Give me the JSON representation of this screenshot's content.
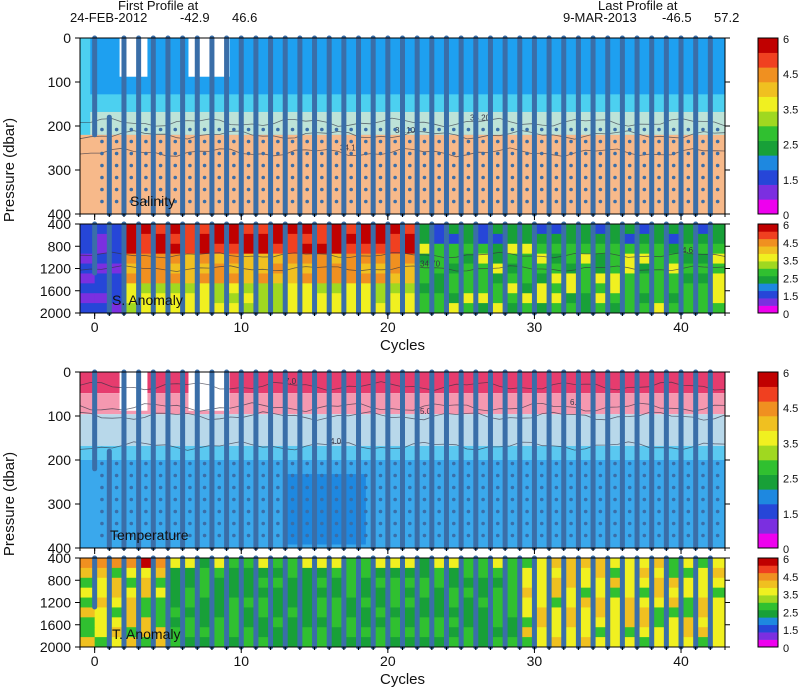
{
  "header": {
    "first_label": "First Profile at",
    "first_date": "24-FEB-2012",
    "first_lat": "-42.9",
    "first_lon": "46.6",
    "last_label": "Last Profile at",
    "last_date": "9-MAR-2013",
    "last_lat": "-46.5",
    "last_lon": "57.2"
  },
  "colors": {
    "colorbar": [
      "#ee00ee",
      "#7b2fe0",
      "#2646d8",
      "#1e88e0",
      "#18a038",
      "#30c030",
      "#a0d820",
      "#f0f020",
      "#f0c020",
      "#f09020",
      "#f04020",
      "#c00000"
    ],
    "profile": "#3a6ea8",
    "sal_bg": [
      "#1ea0f0",
      "#4cd0f0",
      "#bde3d8",
      "#f7b98a"
    ],
    "temp_bg": [
      "#e63c6e",
      "#f598b0",
      "#b8d8ea",
      "#5ac8f0",
      "#3aa8ec",
      "#1e88e0"
    ]
  },
  "chart_data": [
    {
      "type": "heatmap",
      "title": "Salinity",
      "ylabel": "Pressure (dbar)",
      "xlabel": "",
      "x_ticks": [
        "0",
        "10",
        "20",
        "30",
        "40"
      ],
      "y_ticks": [
        "0",
        "100",
        "200",
        "300",
        "400"
      ],
      "xlim": [
        -1,
        43
      ],
      "ylim": [
        400,
        0
      ],
      "colorbar_ticks": [
        "6",
        "4.5",
        "3.5",
        "2.5",
        "1.5",
        "0"
      ],
      "contour_labels": [
        "34.10",
        "34.10",
        "34.20"
      ]
    },
    {
      "type": "heatmap",
      "title": "S. Anomaly",
      "xlabel": "Cycles",
      "x_ticks": [
        "0",
        "10",
        "20",
        "30",
        "40"
      ],
      "y_ticks": [
        "400",
        "800",
        "1200",
        "1600",
        "2000"
      ],
      "xlim": [
        -1,
        43
      ],
      "ylim": [
        2000,
        400
      ],
      "colorbar_ticks": [
        "6",
        "4.5",
        "3.5",
        "2.5",
        "1.5",
        "0"
      ],
      "contour_labels": [
        "34.70",
        "34.70",
        "4.60"
      ]
    },
    {
      "type": "heatmap",
      "title": "Temperature",
      "ylabel": "Pressure (dbar)",
      "xlabel": "",
      "x_ticks": [
        "0",
        "10",
        "20",
        "30",
        "40"
      ],
      "y_ticks": [
        "0",
        "100",
        "200",
        "300",
        "400"
      ],
      "xlim": [
        -1,
        43
      ],
      "ylim": [
        400,
        0
      ],
      "colorbar_ticks": [
        "6",
        "4.5",
        "3.5",
        "2.5",
        "1.5",
        "0"
      ],
      "contour_labels": [
        "7.0",
        "5.0",
        "6.5",
        "7.0",
        "4.0"
      ]
    },
    {
      "type": "heatmap",
      "title": "T. Anomaly",
      "xlabel": "Cycles",
      "x_ticks": [
        "0",
        "10",
        "20",
        "30",
        "40"
      ],
      "y_ticks": [
        "400",
        "800",
        "1200",
        "1600",
        "2000"
      ],
      "xlim": [
        -1,
        43
      ],
      "ylim": [
        2000,
        400
      ],
      "colorbar_ticks": [
        "6",
        "4.5",
        "3.5",
        "2.5",
        "1.5",
        "0"
      ],
      "contour_labels": []
    }
  ]
}
